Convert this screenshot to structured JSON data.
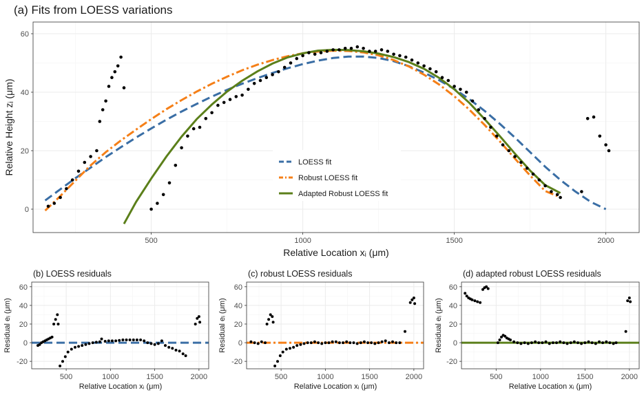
{
  "chart_data": [
    {
      "type": "scatter",
      "title": "(a) Fits from LOESS variations",
      "xlabel": "Relative Location xᵢ (μm)",
      "ylabel": "Relative Height zᵢ (μm)",
      "xlim": [
        110,
        2110
      ],
      "ylim": [
        -8,
        64
      ],
      "x_ticks": [
        500,
        1000,
        1500,
        2000
      ],
      "y_ticks": [
        0,
        20,
        40,
        60
      ],
      "grid": true,
      "legend_position": "center",
      "colors": {
        "loess": "#3a6ea5",
        "robust": "#f57f17",
        "adapted": "#5b7f1a",
        "points": "#000000"
      },
      "series": [
        {
          "name": "LOESS fit",
          "style": "dashed",
          "color": "#3a6ea5",
          "x": [
            150,
            200,
            250,
            300,
            350,
            400,
            450,
            500,
            550,
            600,
            650,
            700,
            750,
            800,
            850,
            900,
            950,
            1000,
            1050,
            1100,
            1150,
            1200,
            1250,
            1300,
            1350,
            1400,
            1450,
            1500,
            1550,
            1600,
            1650,
            1700,
            1750,
            1800,
            1850,
            1900,
            1950,
            2000
          ],
          "y": [
            3,
            6.8,
            10.6,
            14.2,
            17.8,
            21.2,
            24.5,
            27.6,
            30.6,
            33.4,
            36.0,
            38.5,
            40.8,
            42.9,
            44.8,
            46.6,
            48.2,
            49.6,
            50.8,
            51.7,
            52.2,
            52.2,
            51.7,
            50.6,
            48.9,
            46.7,
            44.1,
            41.1,
            37.6,
            33.6,
            29.2,
            24.5,
            19.5,
            14.5,
            10,
            6,
            2.5,
            0
          ]
        },
        {
          "name": "Robust LOESS fit",
          "style": "dotdash",
          "color": "#f57f17",
          "x": [
            150,
            200,
            250,
            300,
            350,
            400,
            450,
            500,
            550,
            600,
            650,
            700,
            750,
            800,
            850,
            900,
            950,
            1000,
            1050,
            1100,
            1150,
            1200,
            1250,
            1300,
            1350,
            1400,
            1450,
            1500,
            1550,
            1600,
            1650,
            1700,
            1750,
            1800,
            1840
          ],
          "y": [
            -0.5,
            4.5,
            9.8,
            15.0,
            19.5,
            23.5,
            27.2,
            30.8,
            34.2,
            37.3,
            40.2,
            42.9,
            45.3,
            47.5,
            49.4,
            51.0,
            52.3,
            53.3,
            53.9,
            54.2,
            54.1,
            53.6,
            52.6,
            51.0,
            48.8,
            46.0,
            42.6,
            38.6,
            34.0,
            28.8,
            23.2,
            17.3,
            11.5,
            6.2,
            4.5
          ]
        },
        {
          "name": "Adapted Robust LOESS fit",
          "style": "solid",
          "color": "#5b7f1a",
          "x": [
            410,
            450,
            500,
            550,
            600,
            650,
            700,
            750,
            800,
            850,
            900,
            950,
            1000,
            1050,
            1100,
            1150,
            1200,
            1250,
            1300,
            1350,
            1400,
            1450,
            1500,
            1550,
            1600,
            1650,
            1700,
            1750,
            1800,
            1850
          ],
          "y": [
            -5,
            2.5,
            10.5,
            18,
            24.8,
            30.8,
            35.8,
            40.2,
            43.9,
            47.1,
            49.8,
            51.9,
            53.3,
            54.2,
            54.5,
            54.4,
            54.0,
            53.2,
            52.0,
            50.3,
            48.0,
            44.9,
            41.0,
            36.3,
            30.8,
            25.0,
            19.0,
            13.2,
            8.2,
            5.5
          ]
        }
      ],
      "points": {
        "x": [
          160,
          180,
          200,
          220,
          240,
          260,
          280,
          300,
          320,
          330,
          340,
          350,
          360,
          370,
          380,
          390,
          400,
          410,
          500,
          520,
          540,
          560,
          580,
          600,
          620,
          640,
          660,
          680,
          700,
          720,
          740,
          760,
          780,
          800,
          820,
          840,
          860,
          880,
          900,
          920,
          940,
          960,
          980,
          1000,
          1020,
          1040,
          1060,
          1080,
          1100,
          1120,
          1140,
          1160,
          1180,
          1200,
          1220,
          1240,
          1260,
          1280,
          1300,
          1320,
          1340,
          1360,
          1380,
          1400,
          1420,
          1440,
          1460,
          1480,
          1500,
          1520,
          1540,
          1560,
          1580,
          1600,
          1620,
          1640,
          1660,
          1680,
          1700,
          1720,
          1740,
          1760,
          1780,
          1800,
          1820,
          1840,
          1850,
          1920,
          1940,
          1960,
          1980,
          2000,
          2010
        ],
        "y": [
          1,
          2,
          4,
          7,
          10,
          13,
          16,
          18,
          20,
          30,
          34,
          37,
          42,
          45,
          47,
          49,
          52,
          41.5,
          0,
          2,
          5,
          9,
          15,
          21,
          25,
          27.5,
          28,
          31,
          33,
          35.5,
          36.5,
          37.5,
          38.5,
          39,
          41,
          43,
          44,
          45,
          46,
          47,
          48.5,
          50,
          51.5,
          52.5,
          53.5,
          53,
          53.5,
          54,
          54.5,
          54.5,
          55,
          55,
          55.5,
          55,
          54,
          54,
          54.5,
          54,
          53,
          52.5,
          52,
          51,
          50,
          49,
          48,
          47,
          45,
          44,
          42,
          41,
          40,
          37,
          34,
          31,
          28,
          25,
          22,
          20,
          18,
          16,
          14,
          12,
          10,
          8,
          6,
          5,
          4,
          6,
          31,
          31.5,
          25,
          22,
          20
        ]
      }
    },
    {
      "type": "scatter",
      "title": "(b) LOESS residuals",
      "xlabel": "Relative Location xᵢ (μm)",
      "ylabel": "Residual eᵢ (μm)",
      "xlim": [
        110,
        2110
      ],
      "ylim": [
        -28,
        65
      ],
      "x_ticks": [
        500,
        1000,
        1500,
        2000
      ],
      "y_ticks": [
        -20,
        0,
        20,
        40,
        60
      ],
      "baseline": {
        "style": "dashed",
        "color": "#3a6ea5",
        "value": 0
      },
      "points": {
        "x": [
          180,
          200,
          220,
          240,
          260,
          280,
          300,
          320,
          340,
          360,
          380,
          400,
          410,
          430,
          460,
          490,
          520,
          560,
          600,
          640,
          680,
          720,
          760,
          800,
          840,
          880,
          900,
          940,
          980,
          1020,
          1060,
          1100,
          1140,
          1180,
          1220,
          1260,
          1300,
          1340,
          1380,
          1420,
          1460,
          1500,
          1540,
          1580,
          1620,
          1660,
          1700,
          1740,
          1780,
          1820,
          1850,
          1960,
          1980,
          2000,
          2010
        ],
        "y": [
          -3,
          -2,
          0,
          1,
          2,
          3,
          4,
          5,
          6,
          20,
          25,
          30,
          20,
          -25,
          -20,
          -15,
          -10,
          -7,
          -5,
          -4,
          -3,
          -2,
          -1,
          0,
          0.5,
          1,
          4,
          1.5,
          2,
          2,
          2,
          2.5,
          3,
          3,
          3,
          3,
          3,
          3,
          2,
          0,
          -1,
          -2,
          -1,
          2,
          -3,
          -5,
          -6,
          -8,
          -9,
          -12,
          -14,
          20,
          26,
          28,
          22
        ]
      }
    },
    {
      "type": "scatter",
      "title": "(c) robust LOESS residuals",
      "xlabel": "Relative Location xᵢ (μm)",
      "ylabel": "Residual eᵢ (μm)",
      "xlim": [
        110,
        2110
      ],
      "ylim": [
        -28,
        65
      ],
      "x_ticks": [
        500,
        1000,
        1500,
        2000
      ],
      "y_ticks": [
        -20,
        0,
        20,
        40,
        60
      ],
      "baseline": {
        "style": "dotdash",
        "color": "#f57f17",
        "value": 0
      },
      "points": {
        "x": [
          160,
          200,
          240,
          280,
          320,
          340,
          360,
          380,
          400,
          410,
          430,
          460,
          490,
          520,
          560,
          600,
          640,
          680,
          720,
          760,
          800,
          840,
          880,
          920,
          960,
          1000,
          1040,
          1080,
          1120,
          1160,
          1200,
          1240,
          1280,
          1320,
          1360,
          1400,
          1440,
          1480,
          1520,
          1560,
          1600,
          1640,
          1680,
          1720,
          1760,
          1800,
          1840,
          1900,
          1960,
          1980,
          2000,
          2010
        ],
        "y": [
          1,
          0,
          -1,
          1,
          0,
          20,
          25,
          30,
          28,
          22,
          -25,
          -20,
          -14,
          -10,
          -7,
          -6,
          -5,
          -3,
          -2,
          -1,
          0,
          0,
          1,
          0,
          -1,
          0,
          0,
          1,
          1,
          0,
          0,
          1,
          0,
          0,
          -1,
          0,
          1,
          0,
          0,
          -1,
          0,
          1,
          2,
          0,
          1,
          0,
          0,
          12,
          43,
          46,
          48,
          42
        ]
      }
    },
    {
      "type": "scatter",
      "title": "(d) adapted robust LOESS residuals",
      "xlabel": "Relative Location xᵢ (μm)",
      "ylabel": "Residual eᵢ (μm)",
      "xlim": [
        110,
        2110
      ],
      "ylim": [
        -28,
        65
      ],
      "x_ticks": [
        500,
        1000,
        1500,
        2000
      ],
      "y_ticks": [
        -20,
        0,
        20,
        40,
        60
      ],
      "baseline": {
        "style": "solid",
        "color": "#5b7f1a",
        "value": 0
      },
      "points": {
        "x": [
          150,
          170,
          190,
          210,
          230,
          260,
          290,
          320,
          350,
          370,
          390,
          410,
          520,
          540,
          560,
          580,
          600,
          620,
          640,
          660,
          700,
          740,
          780,
          820,
          860,
          900,
          940,
          980,
          1020,
          1060,
          1100,
          1140,
          1180,
          1220,
          1260,
          1300,
          1340,
          1380,
          1420,
          1460,
          1500,
          1540,
          1580,
          1620,
          1660,
          1700,
          1740,
          1780,
          1820,
          1850,
          1960,
          1980,
          2000,
          2010
        ],
        "y": [
          53,
          50,
          48,
          47,
          46,
          45,
          44,
          43,
          57,
          59,
          60,
          58,
          0,
          3,
          6,
          8,
          7,
          5,
          4,
          3,
          1,
          0,
          -1,
          0,
          -1,
          0,
          1,
          0,
          0,
          1,
          -1,
          0,
          0,
          1,
          0,
          -1,
          0,
          1,
          0,
          -1,
          0,
          1,
          0,
          -1,
          1,
          0,
          1,
          0,
          -1,
          0,
          12,
          45,
          48,
          44
        ]
      }
    }
  ]
}
